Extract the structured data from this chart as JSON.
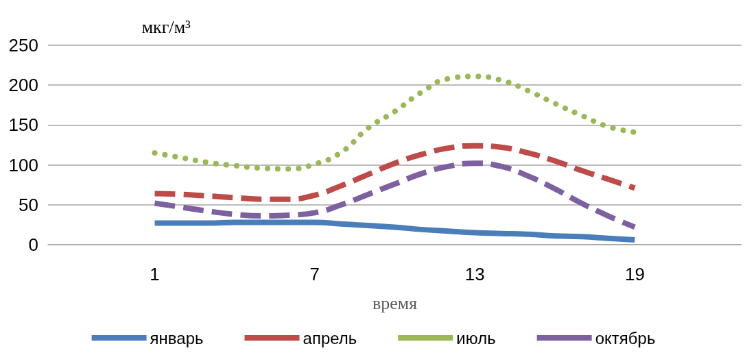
{
  "chart_data": {
    "type": "line",
    "ylabel": "мкг/м³",
    "xlabel": "время",
    "x": [
      1,
      2,
      3,
      4,
      5,
      6,
      7,
      8,
      9,
      10,
      11,
      12,
      13,
      14,
      15,
      16,
      17,
      18,
      19
    ],
    "xlim": [
      -3,
      23
    ],
    "xticks": [
      1,
      7,
      13,
      19
    ],
    "ylim": [
      0,
      250
    ],
    "yticks": [
      0,
      50,
      100,
      150,
      200,
      250
    ],
    "grid": "y",
    "legend": "bottom",
    "marker": "none",
    "series": [
      {
        "name": "январь",
        "color": "#4a7ebb",
        "line_style": "solid",
        "values": [
          27,
          27,
          27,
          28,
          28,
          28,
          28,
          26,
          24,
          22,
          19,
          17,
          15,
          14,
          13,
          11,
          10,
          8,
          6
        ]
      },
      {
        "name": "апрель",
        "color": "#be4b48",
        "line_style": "dashed",
        "values": [
          64,
          63,
          61,
          59,
          57,
          57,
          62,
          74,
          88,
          102,
          113,
          121,
          124,
          122,
          115,
          105,
          93,
          82,
          71
        ]
      },
      {
        "name": "июль",
        "color": "#98b954",
        "line_style": "dotted",
        "values": [
          115,
          109,
          103,
          99,
          96,
          95,
          101,
          116,
          146,
          167,
          191,
          208,
          211,
          206,
          193,
          177,
          162,
          148,
          141
        ]
      },
      {
        "name": "октябрь",
        "color": "#7d60a0",
        "line_style": "dashed",
        "values": [
          52,
          47,
          42,
          38,
          36,
          37,
          40,
          50,
          63,
          76,
          89,
          98,
          102,
          98,
          86,
          70,
          52,
          36,
          22
        ]
      }
    ]
  }
}
